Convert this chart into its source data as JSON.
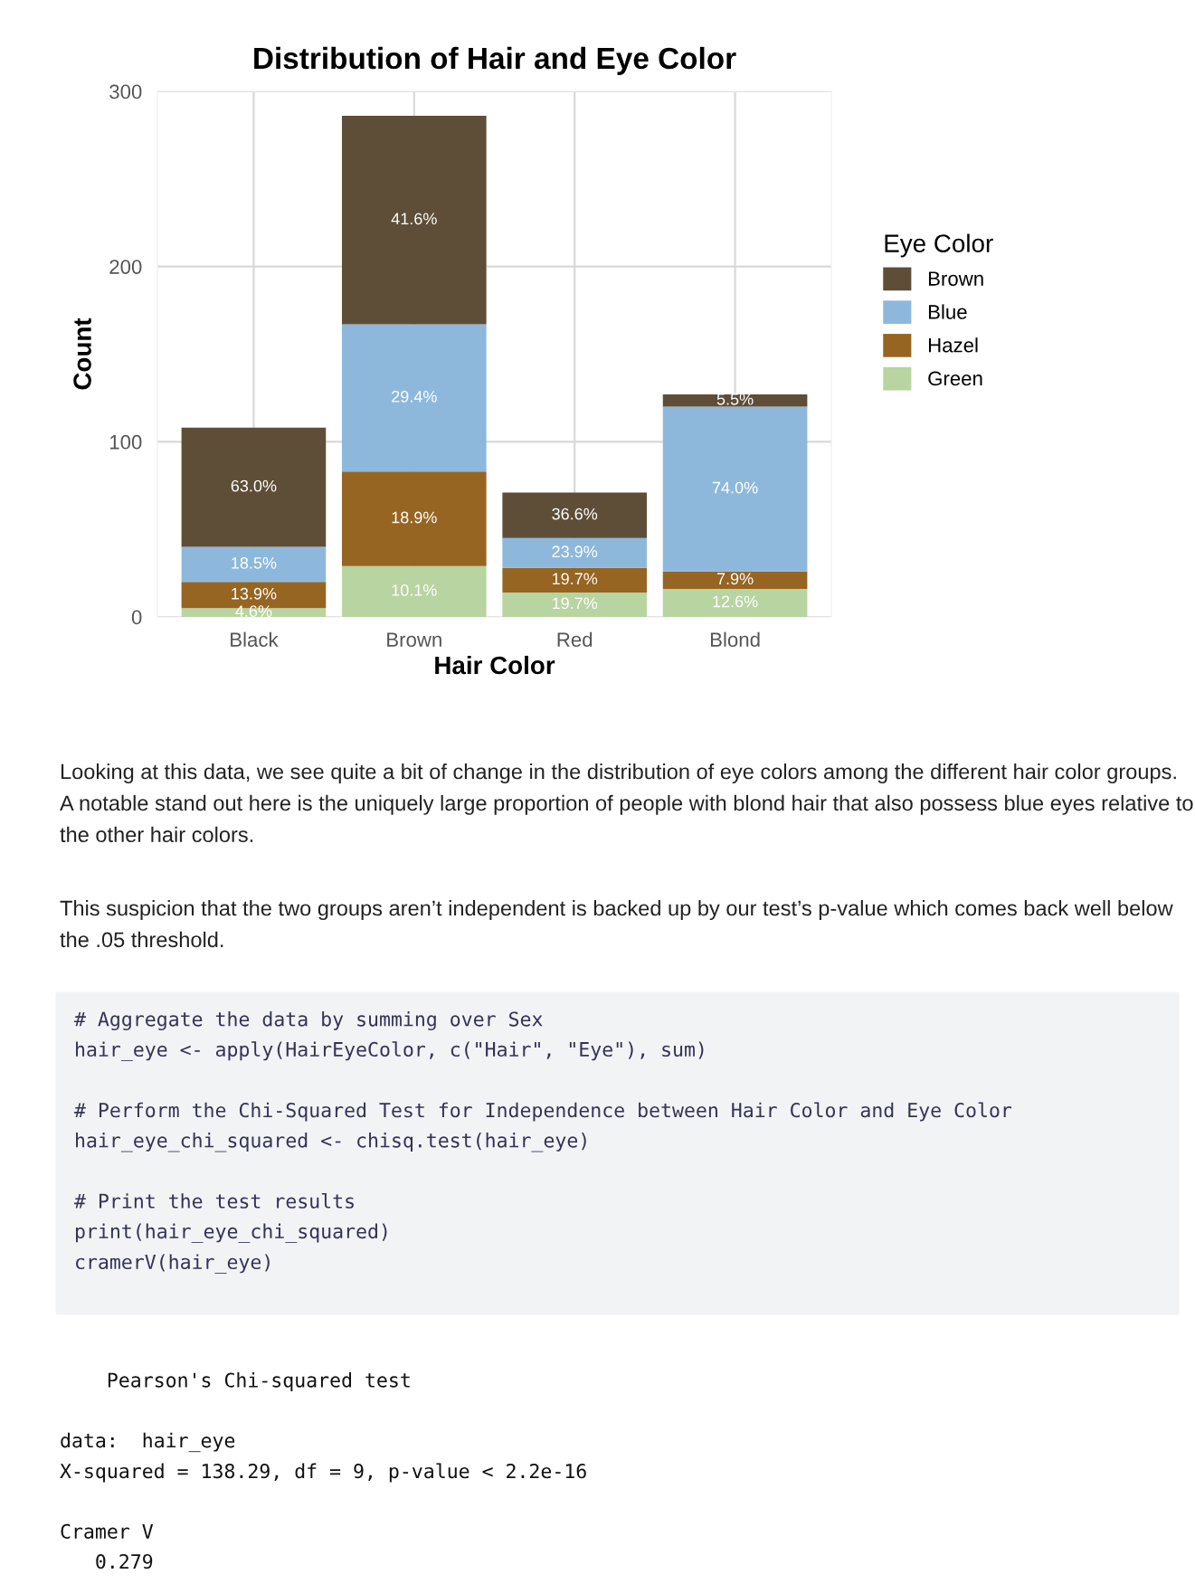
{
  "chart_data": {
    "type": "bar",
    "stacked": true,
    "title": "Distribution of Hair and Eye Color",
    "xlabel": "Hair Color",
    "ylabel": "Count",
    "legend_title": "Eye Color",
    "legend": "right",
    "grid": true,
    "categories": [
      "Black",
      "Brown",
      "Red",
      "Blond"
    ],
    "ylim": [
      0,
      300
    ],
    "yticks": [
      0,
      100,
      200,
      300
    ],
    "series": [
      {
        "name": "Green",
        "color": "#b8d4a0",
        "values": [
          5,
          29,
          14,
          16
        ]
      },
      {
        "name": "Hazel",
        "color": "#966521",
        "values": [
          15,
          54,
          14,
          10
        ]
      },
      {
        "name": "Blue",
        "color": "#8db8dc",
        "values": [
          20,
          84,
          17,
          94
        ]
      },
      {
        "name": "Brown",
        "color": "#5e4e38",
        "values": [
          68,
          119,
          26,
          7
        ]
      }
    ],
    "annotations": [
      "4.6%",
      "13.9%",
      "18.5%",
      "63.0%",
      "10.1%",
      "18.9%",
      "29.4%",
      "41.6%",
      "19.7%",
      "19.7%",
      "23.9%",
      "36.6%",
      "12.6%",
      "7.9%",
      "74.0%",
      "5.5%",
      "Looking at this data, we see quite a bit of change in the distribution of eye colors among the different hair color groups. A notable stand out here is the uniquely large proportion of people with blond hair that also possess blue eyes relative to the other hair colors.",
      "This suspicion that the two groups aren’t independent is backed up by our test’s p-value which comes back well below the .05 threshold.",
      "# Aggregate the data by summing over Sex\nhair_eye <- apply(HairEyeColor, c(\"Hair\", \"Eye\"), sum)\n\n# Perform the Chi-Squared Test for Independence between Hair Color and Eye Color\nhair_eye_chi_squared <- chisq.test(hair_eye)\n\n# Print the test results\nprint(hair_eye_chi_squared)\ncramerV(hair_eye)",
      "    Pearson's Chi-squared test\n\ndata:  hair_eye\nX-squared = 138.29, df = 9, p-value < 2.2e-16\n\nCramer V\n   0.279"
    ]
  }
}
